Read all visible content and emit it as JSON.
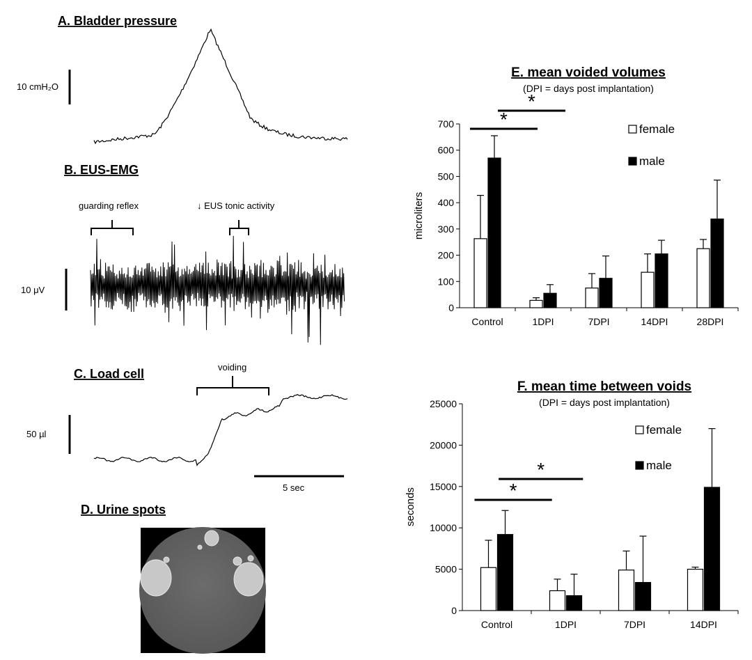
{
  "panels": {
    "a": {
      "title": "A. Bladder pressure",
      "scale": "10 cmH₂O"
    },
    "b": {
      "title": "B. EUS-EMG",
      "scale": "10 μV",
      "bracket1": "guarding reflex",
      "bracket2": "↓ EUS tonic activity"
    },
    "c": {
      "title": "C. Load cell",
      "scale": "50 µl",
      "bracket": "voiding",
      "timebar": "5 sec"
    },
    "d": {
      "title": "D. Urine spots"
    }
  },
  "chart_data": [
    {
      "id": "E",
      "type": "bar",
      "title": "E. mean voided volumes",
      "subtitle": "(DPI = days post implantation)",
      "ylabel": "microliters",
      "xlabel": "",
      "ylim": [
        0,
        700
      ],
      "yticks": [
        0,
        100,
        200,
        300,
        400,
        500,
        600,
        700
      ],
      "categories": [
        "Control",
        "1DPI",
        "7DPI",
        "14DPI",
        "28DPI"
      ],
      "series": [
        {
          "name": "female",
          "color": "#ffffff",
          "values": [
            263,
            28,
            75,
            135,
            225
          ],
          "errors": [
            165,
            10,
            55,
            70,
            35
          ]
        },
        {
          "name": "male",
          "color": "#000000",
          "values": [
            570,
            55,
            112,
            205,
            338
          ],
          "errors": [
            85,
            33,
            85,
            52,
            148
          ]
        }
      ],
      "significance": [
        {
          "label": "*",
          "from": 0,
          "to": 0.9
        },
        {
          "label": "*",
          "from": 0.5,
          "to": 1.4
        }
      ],
      "grid": false,
      "legend_position": "top-right"
    },
    {
      "id": "F",
      "type": "bar",
      "title": "F. mean time between voids",
      "subtitle": "(DPI = days post implantation)",
      "ylabel": "seconds",
      "xlabel": "",
      "ylim": [
        0,
        25000
      ],
      "yticks": [
        0,
        5000,
        10000,
        15000,
        20000,
        25000
      ],
      "categories": [
        "Control",
        "1DPI",
        "7DPI",
        "14DPI"
      ],
      "series": [
        {
          "name": "female",
          "color": "#ffffff",
          "values": [
            5200,
            2400,
            4900,
            5000
          ],
          "errors": [
            3300,
            1400,
            2300,
            250
          ]
        },
        {
          "name": "male",
          "color": "#000000",
          "values": [
            9200,
            1800,
            3400,
            14900
          ],
          "errors": [
            2900,
            2600,
            5600,
            7100
          ]
        }
      ],
      "significance": [
        {
          "label": "*",
          "from": 0,
          "to": 0.8
        },
        {
          "label": "*",
          "from": 0.35,
          "to": 1.25
        }
      ],
      "grid": false,
      "legend_position": "top-right"
    }
  ]
}
